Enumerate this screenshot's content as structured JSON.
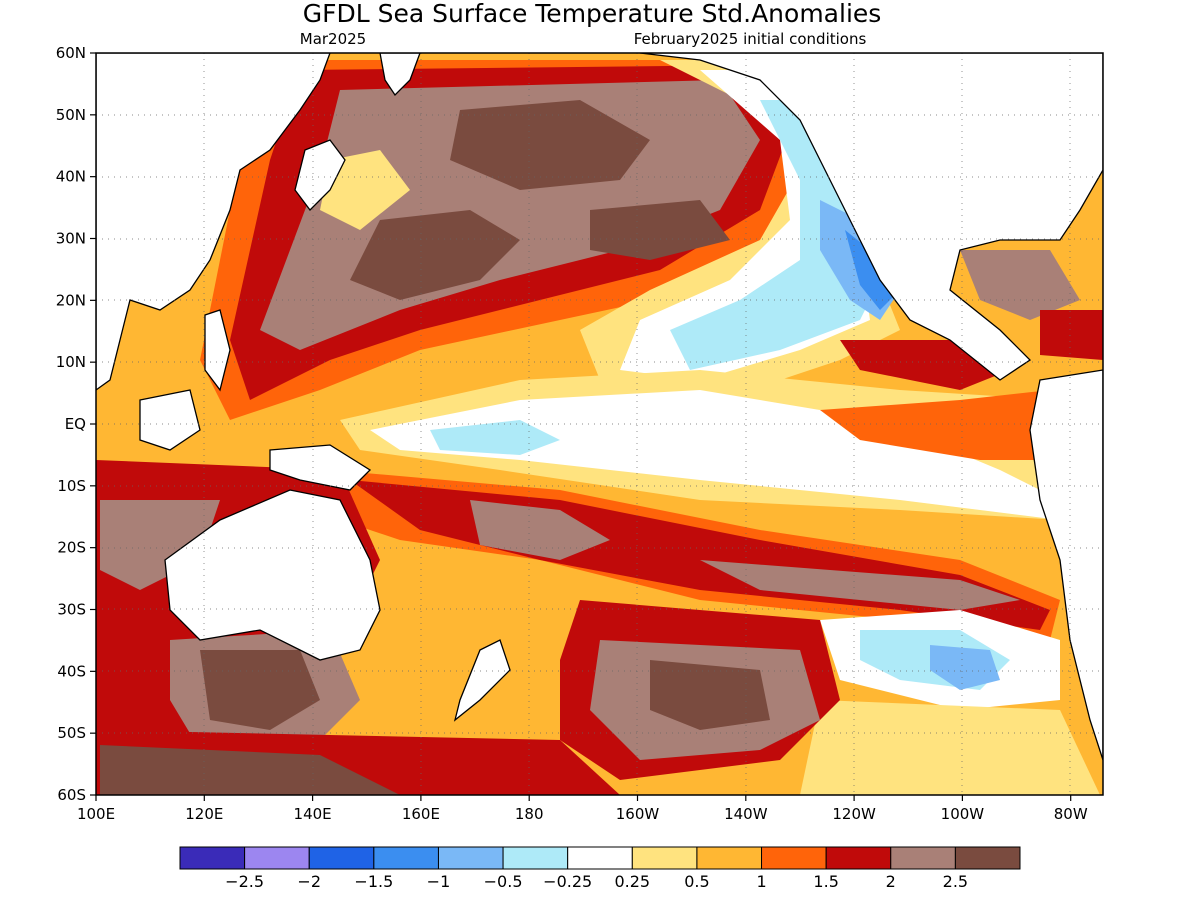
{
  "title": "GFDL Sea Surface Temperature Std.Anomalies",
  "subtitle_left": "Mar2025",
  "subtitle_right": "February2025 initial conditions",
  "lat_labels": [
    "60N",
    "50N",
    "40N",
    "30N",
    "20N",
    "10N",
    "EQ",
    "10S",
    "20S",
    "30S",
    "40S",
    "50S",
    "60S"
  ],
  "lon_labels": [
    "100E",
    "120E",
    "140E",
    "160E",
    "180",
    "160W",
    "140W",
    "120W",
    "100W",
    "80W"
  ],
  "colorbar": {
    "colors": [
      "#3a2bb8",
      "#9c86f0",
      "#1f63e6",
      "#3b8ef0",
      "#7ab8f6",
      "#aeeaf8",
      "#ffffff",
      "#ffe37f",
      "#ffb733",
      "#ff640a",
      "#c00a0a",
      "#a98077",
      "#7a4b3f"
    ],
    "labels": [
      "−2.5",
      "−2",
      "−1.5",
      "−1",
      "−0.5",
      "−0.25",
      "0.25",
      "0.5",
      "1",
      "1.5",
      "2",
      "2.5"
    ]
  }
}
